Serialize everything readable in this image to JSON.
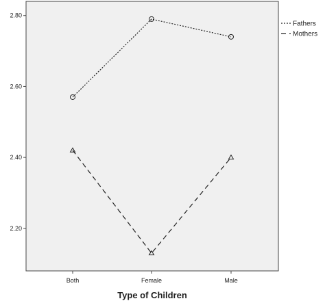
{
  "chart_data": {
    "type": "line",
    "categories": [
      "Both",
      "Female",
      "Male"
    ],
    "series": [
      {
        "name": "Fathers",
        "values": [
          2.57,
          2.79,
          2.74
        ],
        "dash": "2,2",
        "marker": "circle"
      },
      {
        "name": "Mothers",
        "values": [
          2.42,
          2.13,
          2.4
        ],
        "dash": "7,5",
        "marker": "triangle"
      }
    ],
    "xlabel": "Type of Children",
    "ylim": [
      2.08,
      2.84
    ],
    "yticks": [
      2.2,
      2.4,
      2.6,
      2.8
    ],
    "ytick_labels": [
      "2.20",
      "2.40",
      "2.60",
      "2.80"
    ],
    "legend_placement": "top-right, outside plot",
    "grid": false,
    "colors": {
      "plot_background": "#f0f0f0",
      "line": "#222222",
      "frame": "#444444"
    }
  }
}
